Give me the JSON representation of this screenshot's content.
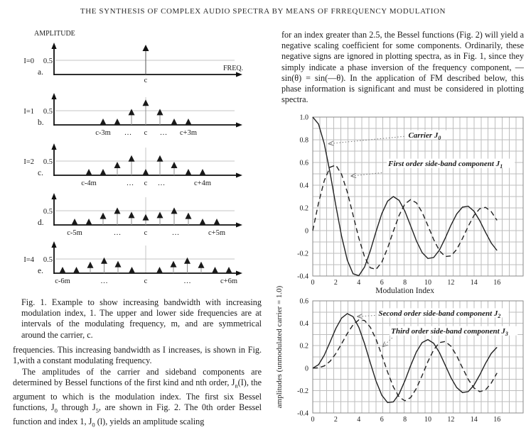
{
  "title": "THE SYNTHESIS OF COMPLEX AUDIO SPECTRA BY MEANS OF FRREQUENCY MODULATION",
  "fig1": {
    "amplitude_label": "AMPLITUDE",
    "freq_label": "FREQ.",
    "panels": [
      {
        "id": "a",
        "index_label": "I=0",
        "scale_label": "0.5",
        "letter": "a.",
        "x_axis_labels": [
          [
            "c",
            0
          ]
        ],
        "spikes": [
          [
            0,
            1.0
          ]
        ]
      },
      {
        "id": "b",
        "index_label": "I=1",
        "scale_label": "0.5",
        "letter": "b.",
        "x_axis_labels": [
          [
            "c-3m",
            -3
          ],
          [
            "…",
            -1.25
          ],
          [
            "c",
            0
          ],
          [
            "…",
            1.25
          ],
          [
            "c+3m",
            3
          ]
        ],
        "spikes": [
          [
            -3,
            0.05
          ],
          [
            -2,
            0.12
          ],
          [
            -1,
            0.44
          ],
          [
            0,
            0.77
          ],
          [
            1,
            0.44
          ],
          [
            2,
            0.12
          ],
          [
            3,
            0.05
          ]
        ]
      },
      {
        "id": "c",
        "index_label": "I=2",
        "scale_label": "0.5",
        "letter": "c.",
        "x_axis_labels": [
          [
            "c-4m",
            -4
          ],
          [
            "…",
            -1.1
          ],
          [
            "c",
            0
          ],
          [
            "…",
            1.1
          ],
          [
            "c+4m",
            4
          ]
        ],
        "spikes": [
          [
            -4,
            0.04
          ],
          [
            -3,
            0.13
          ],
          [
            -2,
            0.35
          ],
          [
            -1,
            0.58
          ],
          [
            0,
            0.22
          ],
          [
            1,
            0.58
          ],
          [
            2,
            0.35
          ],
          [
            3,
            0.13
          ],
          [
            4,
            0.04
          ]
        ]
      },
      {
        "id": "d",
        "index_label": "",
        "scale_label": "0.5",
        "letter": "d.",
        "x_axis_labels": [
          [
            "c-5m",
            -5
          ],
          [
            "…",
            -2
          ],
          [
            "c",
            0
          ],
          [
            "…",
            2.1
          ],
          [
            "c+5m",
            5
          ]
        ],
        "spikes": [
          [
            -5,
            0.05
          ],
          [
            -4,
            0.13
          ],
          [
            -3,
            0.31
          ],
          [
            -2,
            0.49
          ],
          [
            -1,
            0.34
          ],
          [
            0,
            0.26
          ],
          [
            1,
            0.34
          ],
          [
            2,
            0.49
          ],
          [
            3,
            0.31
          ],
          [
            4,
            0.13
          ],
          [
            5,
            0.05
          ]
        ]
      },
      {
        "id": "e",
        "index_label": "I=4",
        "scale_label": "0.5",
        "letter": "e.",
        "x_axis_labels": [
          [
            "c-6m",
            -6
          ],
          [
            "…",
            -3
          ],
          [
            "c",
            0
          ],
          [
            "…",
            3
          ],
          [
            "c+6m",
            6
          ]
        ],
        "spikes": [
          [
            -6,
            0.05
          ],
          [
            -5,
            0.13
          ],
          [
            -4,
            0.28
          ],
          [
            -3,
            0.43
          ],
          [
            -2,
            0.31
          ],
          [
            -1,
            0.06
          ],
          [
            1,
            0.06
          ],
          [
            2,
            0.31
          ],
          [
            3,
            0.43
          ],
          [
            4,
            0.28
          ],
          [
            5,
            0.13
          ],
          [
            6,
            0.05
          ]
        ]
      }
    ]
  },
  "fig1_caption": "Fig. 1. Example to show increasing bandwidth with increasing modulation index, 1. The upper and lower side frequencies are at intervals of the modulating frequency, m, and are symmetrical around the carrier, c.",
  "left_column": {
    "p1": "frequencies. This increasing bandwidth as I increases, is shown in Fig. 1,with a constant modulating frequency.",
    "p2": "The amplitudes of the carrier and sideband components are determined by Bessel functions of the first kind and nth order, J_{n}(I), the argument to which is the modulation index. The first six Bessel functions, J_{0} through J_{5}, are shown in Fig. 2. The 0th order Bessel function and index 1, J_{0} (l), yields an amplitude scaling"
  },
  "right_column": {
    "p1": "for an index greater than 2.5, the Bessel functions (Fig. 2) will yield a negative scaling coefficient for some components. Ordinarily, these negative signs are ignored in plotting spectra, as in Fig. 1, since they simply indicate a phase inversion of the frequency component, —sin(θ) = sin(—θ). In the application of FM described below, this phase information is significant and must be considered in plotting spectra.",
    "ylabel_shared": "amplitudes (unmodulated carrier = 1.0)"
  },
  "chart_data": [
    {
      "type": "line",
      "xlabel": "Modulation Index",
      "ylabel": "amplitudes (unmodulated carrier = 1.0)",
      "xlim": [
        0,
        18.3
      ],
      "ylim": [
        -0.4,
        1.0
      ],
      "xticks": [
        0,
        2,
        4,
        6,
        8,
        10,
        12,
        14,
        16
      ],
      "yticks": [
        "1.0",
        "0.8",
        "0.6",
        "0.4",
        "0.2",
        "0",
        "-0.2",
        "-0.4"
      ],
      "grid": "on",
      "x": [
        0,
        0.5,
        1,
        1.5,
        2,
        2.5,
        3,
        3.5,
        4,
        4.5,
        5,
        5.5,
        6,
        6.5,
        7,
        7.5,
        8,
        8.5,
        9,
        9.5,
        10,
        10.5,
        11,
        11.5,
        12,
        12.5,
        13,
        13.5,
        14,
        14.5,
        15,
        15.5,
        16
      ],
      "series": [
        {
          "name": "Carrier J_{0}",
          "style": "solid",
          "values": [
            1.0,
            0.9385,
            0.7652,
            0.5118,
            0.2239,
            -0.0484,
            -0.2601,
            -0.3801,
            -0.3971,
            -0.3205,
            -0.1776,
            -0.0068,
            0.1506,
            0.2601,
            0.3001,
            0.2663,
            0.1717,
            0.0419,
            -0.0903,
            -0.1939,
            -0.2459,
            -0.2366,
            -0.1712,
            -0.0677,
            0.0477,
            0.1469,
            0.2069,
            0.215,
            0.1711,
            0.0875,
            -0.0142,
            -0.1092,
            -0.1749
          ]
        },
        {
          "name": "First order side-band component J_{1}",
          "style": "dashed",
          "values": [
            0,
            0.2423,
            0.4401,
            0.5579,
            0.5767,
            0.4971,
            0.3391,
            0.1374,
            -0.066,
            -0.2311,
            -0.3276,
            -0.3414,
            -0.2767,
            -0.1538,
            -0.0047,
            0.1352,
            0.2346,
            0.2731,
            0.2453,
            0.1613,
            0.0435,
            -0.0789,
            -0.1768,
            -0.2284,
            -0.2234,
            -0.1655,
            -0.0703,
            0.038,
            0.1334,
            0.1934,
            0.2051,
            0.1672,
            0.0904
          ]
        }
      ],
      "annotations": [
        {
          "text": "Carrier J_{0}",
          "tx": 8.3,
          "ty": 0.84,
          "ax": 7.95,
          "ay": 0.83,
          "x": 1.35,
          "y": 0.765
        },
        {
          "text": "First order side-band component J_{1}",
          "tx": 6.55,
          "ty": 0.59,
          "ax": 6.0,
          "ay": 0.51,
          "x": 3.3,
          "y": 0.48
        }
      ]
    },
    {
      "type": "line",
      "xlabel": "",
      "ylabel": "amplitudes (unmodulated carrier = 1.0)",
      "xlim": [
        0,
        18.3
      ],
      "ylim": [
        -0.4,
        0.6
      ],
      "xticks": [
        0,
        2,
        4,
        6,
        8,
        10,
        12,
        14,
        16
      ],
      "yticks": [
        "0.6",
        "0.4",
        "0.2",
        "0",
        "-0.2",
        "-0.4"
      ],
      "grid": "on",
      "x": [
        0,
        0.5,
        1,
        1.5,
        2,
        2.5,
        3,
        3.5,
        4,
        4.5,
        5,
        5.5,
        6,
        6.5,
        7,
        7.5,
        8,
        8.5,
        9,
        9.5,
        10,
        10.5,
        11,
        11.5,
        12,
        12.5,
        13,
        13.5,
        14,
        14.5,
        15,
        15.5,
        16
      ],
      "series": [
        {
          "name": "Second order side-band component J_{2}",
          "style": "solid",
          "values": [
            0,
            0.0306,
            0.1149,
            0.2321,
            0.3528,
            0.4461,
            0.4861,
            0.4586,
            0.3641,
            0.2178,
            0.0466,
            -0.1173,
            -0.2429,
            -0.3074,
            -0.3014,
            -0.2303,
            -0.113,
            0.0223,
            0.1448,
            0.2279,
            0.2546,
            0.2216,
            0.139,
            0.0279,
            -0.0849,
            -0.1734,
            -0.2177,
            -0.2094,
            -0.152,
            -0.0608,
            0.0416,
            0.1308,
            0.1862
          ]
        },
        {
          "name": "Third order side-band component J_{3}",
          "style": "dashed",
          "values": [
            0,
            0.0026,
            0.0196,
            0.061,
            0.1289,
            0.2166,
            0.3091,
            0.3868,
            0.4302,
            0.4247,
            0.3648,
            0.2561,
            0.1148,
            -0.0353,
            -0.1676,
            -0.258,
            -0.2911,
            -0.2626,
            -0.1809,
            -0.0653,
            0.0584,
            0.1633,
            0.2273,
            0.2381,
            0.1951,
            0.11,
            0.0033,
            -0.1,
            -0.1768,
            -0.2102,
            -0.194,
            -0.1334,
            -0.0439
          ]
        }
      ],
      "annotations": [
        {
          "text": "Second order side-band component J_{2}",
          "tx": 5.7,
          "ty": 0.49,
          "ax": 5.4,
          "ay": 0.47,
          "x": 3.85,
          "y": 0.46
        },
        {
          "text": "Third order side-band component J_{3}",
          "tx": 6.8,
          "ty": 0.33,
          "ax": 6.9,
          "ay": 0.27,
          "x": 6.05,
          "y": 0.19
        }
      ]
    }
  ]
}
